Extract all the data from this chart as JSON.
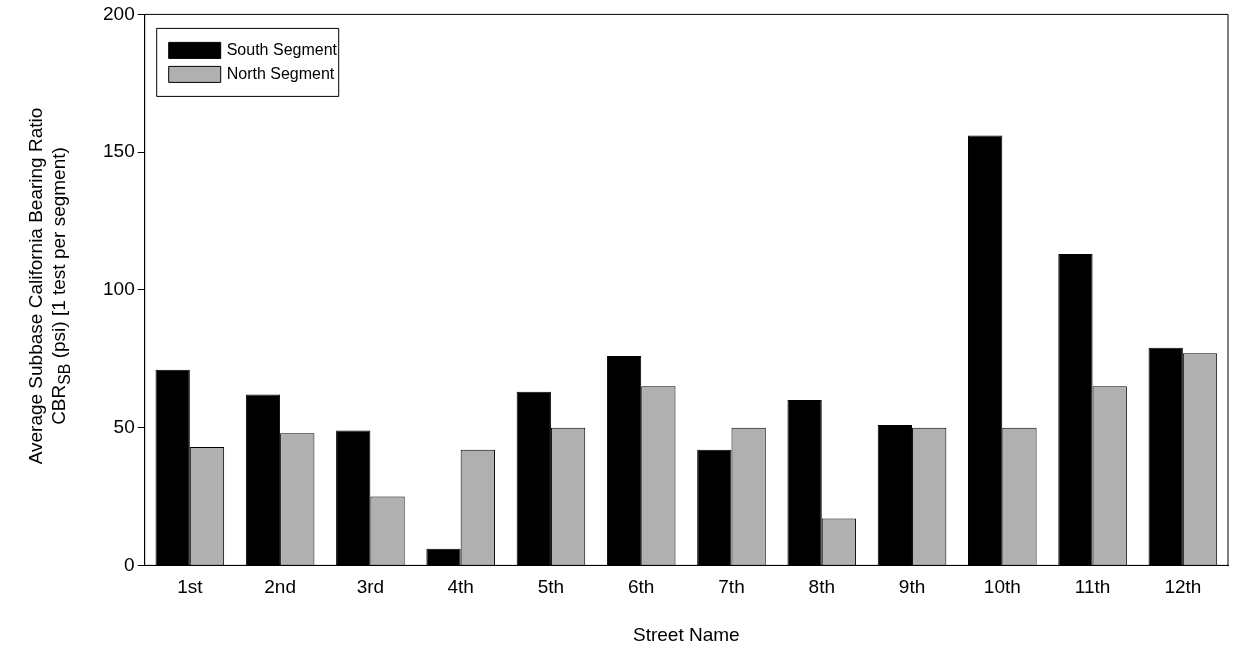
{
  "chart_data": {
    "type": "bar",
    "xlabel": "Street Name",
    "ylabel": "Average Subbase California Bearing Ratio\nCBR$_{SB}$ (psi) [1 test per segment)",
    "categories": [
      "1st",
      "2nd",
      "3rd",
      "4th",
      "5th",
      "6th",
      "7th",
      "8th",
      "9th",
      "10th",
      "11th",
      "12th"
    ],
    "series": [
      {
        "name": "South Segment",
        "color": "#000000",
        "values": [
          71,
          62,
          49,
          6,
          63,
          76,
          42,
          60,
          51,
          156,
          113,
          79
        ]
      },
      {
        "name": "North Segment",
        "color": "#b0b0b0",
        "values": [
          43,
          48,
          25,
          42,
          50,
          65,
          50,
          17,
          50,
          50,
          65,
          77
        ]
      }
    ],
    "ylim": [
      0,
      200
    ],
    "yticks": [
      0,
      50,
      100,
      150,
      200
    ],
    "grid": false,
    "legend": "top left"
  }
}
